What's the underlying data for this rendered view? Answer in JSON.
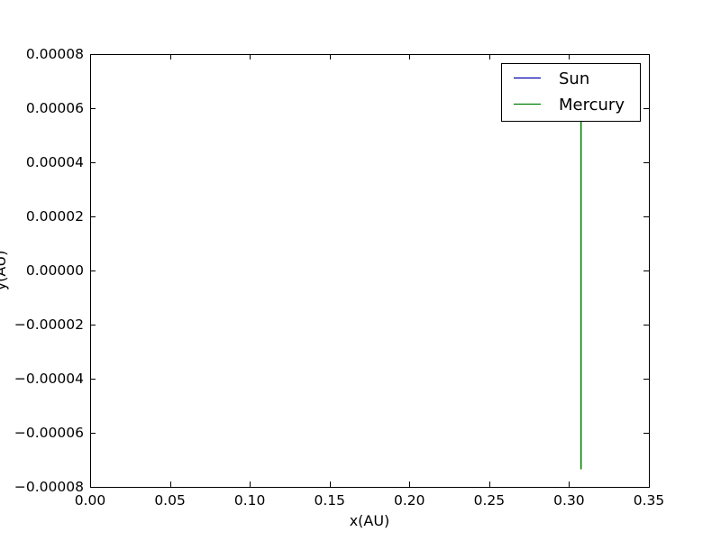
{
  "chart_data": {
    "type": "line",
    "title": "",
    "xlabel": "x(AU)",
    "ylabel": "y(AU)",
    "xlim": [
      0.0,
      0.35
    ],
    "ylim": [
      -8e-05,
      8e-05
    ],
    "xticks": [
      0.0,
      0.05,
      0.1,
      0.15,
      0.2,
      0.25,
      0.3,
      0.35
    ],
    "xtick_labels": [
      "0.00",
      "0.05",
      "0.10",
      "0.15",
      "0.20",
      "0.25",
      "0.30",
      "0.35"
    ],
    "yticks": [
      -8e-05,
      -6e-05,
      -4e-05,
      -2e-05,
      0.0,
      2e-05,
      4e-05,
      6e-05,
      8e-05
    ],
    "ytick_labels": [
      "−0.00008",
      "−0.00006",
      "−0.00004",
      "−0.00002",
      "0.00000",
      "0.00002",
      "0.00004",
      "0.00006",
      "0.00008"
    ],
    "grid": false,
    "legend_position": "top-right",
    "series": [
      {
        "name": "Sun",
        "color": "#0000aa",
        "x": [
          0.0,
          0.0
        ],
        "y": [
          0.0,
          0.0
        ]
      },
      {
        "name": "Mercury",
        "color": "#008000",
        "x": [
          0.3075,
          0.3075,
          0.3075
        ],
        "y": [
          -7.35e-05,
          0.0,
          7.4e-05
        ]
      }
    ]
  }
}
